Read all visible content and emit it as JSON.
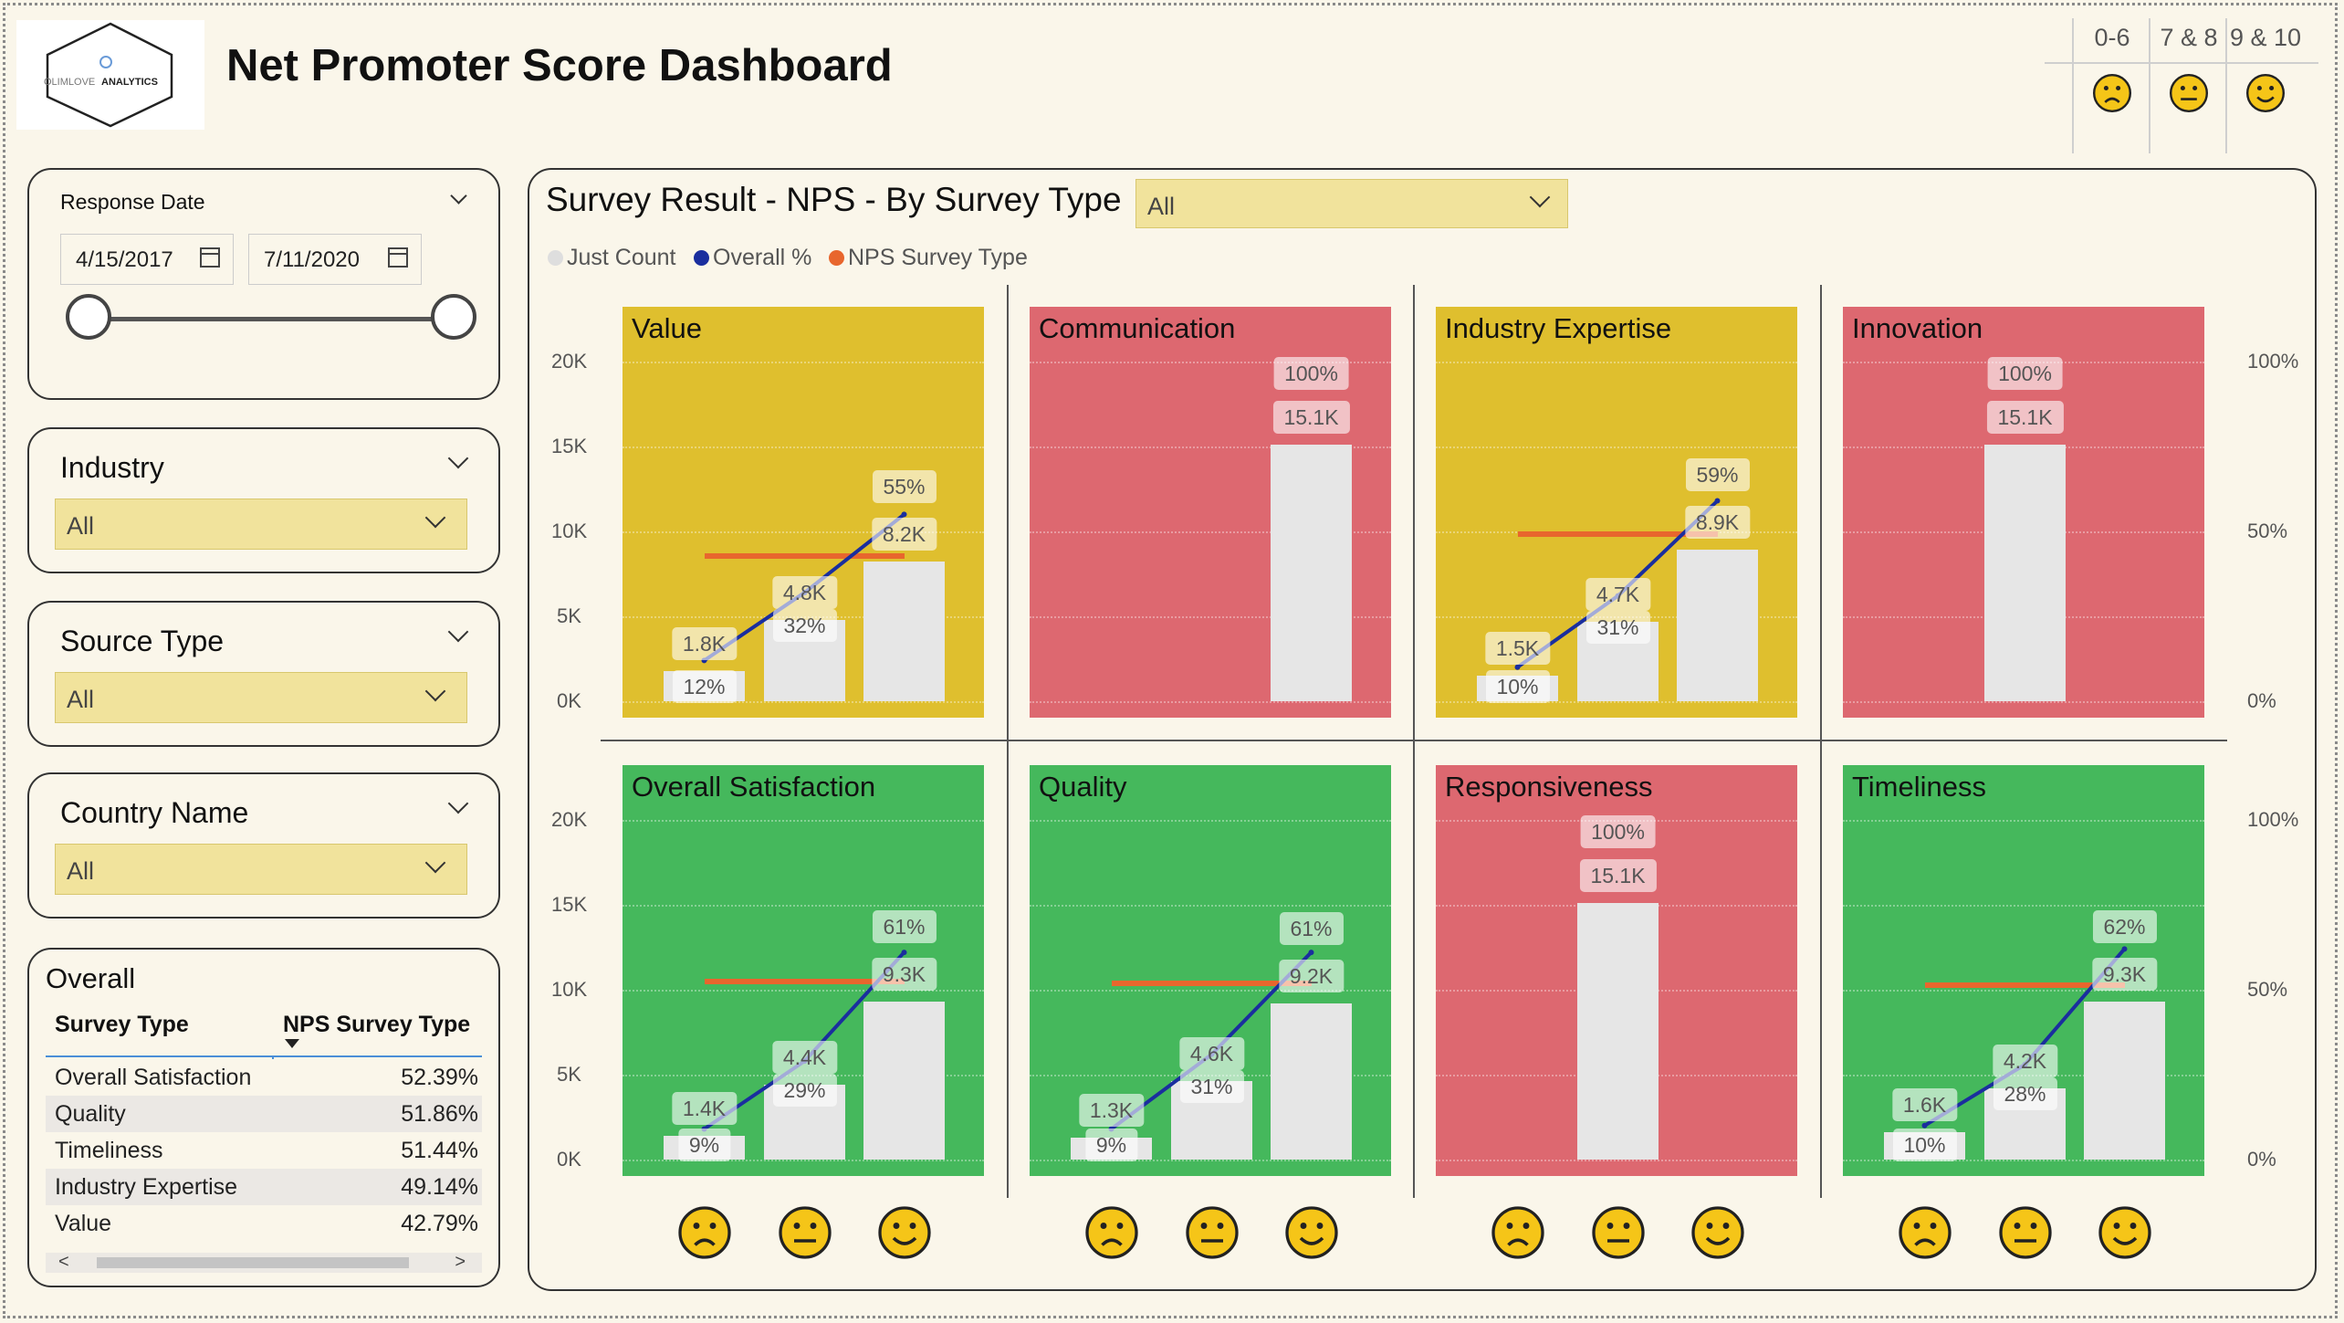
{
  "logo": {
    "text_light": "OLIMLOVE",
    "text_bold": "ANALYTICS"
  },
  "title": "Net Promoter Score Dashboard",
  "score_legend": [
    {
      "label": "0-6",
      "icon": "sad-face-icon"
    },
    {
      "label": "7 & 8",
      "icon": "neutral-face-icon"
    },
    {
      "label": "9 & 10",
      "icon": "happy-face-icon"
    }
  ],
  "response_date": {
    "title": "Response Date",
    "start": "4/15/2017",
    "end": "7/11/2020"
  },
  "slicers": [
    {
      "title": "Industry",
      "value": "All"
    },
    {
      "title": "Source Type",
      "value": "All"
    },
    {
      "title": "Country Name",
      "value": "All"
    }
  ],
  "overall": {
    "title": "Overall",
    "columns": [
      "Survey Type",
      "NPS Survey Type"
    ],
    "rows": [
      {
        "name": "Overall Satisfaction",
        "value": "52.39%"
      },
      {
        "name": "Quality",
        "value": "51.86%"
      },
      {
        "name": "Timeliness",
        "value": "51.44%"
      },
      {
        "name": "Industry Expertise",
        "value": "49.14%"
      },
      {
        "name": "Value",
        "value": "42.79%"
      }
    ],
    "scroll_left": "<",
    "scroll_right": ">"
  },
  "main": {
    "title": "Survey Result - NPS - By Survey Type",
    "filter_value": "All",
    "legend": [
      "Just Count",
      "Overall %",
      "NPS Survey Type"
    ],
    "left_axis": [
      "20K",
      "15K",
      "10K",
      "5K",
      "0K"
    ],
    "right_axis": [
      "100%",
      "50%",
      "0%"
    ]
  },
  "colors": {
    "yellow": "#dfbf2e",
    "red": "#dd6870",
    "green": "#45b85c",
    "bar": "#e6e6e6",
    "overall_line": "#1a2e9e",
    "nps_line": "#e8662d",
    "dropdown": "#f1e39c"
  },
  "chart_data": {
    "type": "bar",
    "categories": [
      "0-6",
      "7 & 8",
      "9 & 10"
    ],
    "ylim": [
      0,
      20000
    ],
    "y2lim": [
      0,
      1
    ],
    "panels": [
      {
        "name": "Value",
        "color": "yellow",
        "counts": [
          1800,
          4800,
          8200
        ],
        "count_labels": [
          "1.8K",
          "4.8K",
          "8.2K"
        ],
        "pct": [
          0.12,
          0.32,
          0.55
        ],
        "pct_labels": [
          "12%",
          "32%",
          "55%"
        ],
        "nps": 0.4279
      },
      {
        "name": "Communication",
        "color": "red",
        "counts": [
          null,
          null,
          15100
        ],
        "count_labels": [
          "",
          "",
          "15.1K"
        ],
        "pct": [
          null,
          null,
          1.0
        ],
        "pct_labels": [
          "",
          "",
          "100%"
        ],
        "nps": null
      },
      {
        "name": "Industry Expertise",
        "color": "yellow",
        "counts": [
          1500,
          4700,
          8900
        ],
        "count_labels": [
          "1.5K",
          "4.7K",
          "8.9K"
        ],
        "pct": [
          0.1,
          0.31,
          0.59
        ],
        "pct_labels": [
          "10%",
          "31%",
          "59%"
        ],
        "nps": 0.4914
      },
      {
        "name": "Innovation",
        "color": "red",
        "counts": [
          null,
          15100,
          null
        ],
        "count_labels": [
          "",
          "15.1K",
          ""
        ],
        "pct": [
          null,
          1.0,
          null
        ],
        "pct_labels": [
          "",
          "100%",
          ""
        ],
        "nps": null
      },
      {
        "name": "Overall Satisfaction",
        "color": "green",
        "counts": [
          1400,
          4400,
          9300
        ],
        "count_labels": [
          "1.4K",
          "4.4K",
          "9.3K"
        ],
        "pct": [
          0.09,
          0.29,
          0.61
        ],
        "pct_labels": [
          "9%",
          "29%",
          "61%"
        ],
        "nps": 0.5239
      },
      {
        "name": "Quality",
        "color": "green",
        "counts": [
          1300,
          4600,
          9200
        ],
        "count_labels": [
          "1.3K",
          "4.6K",
          "9.2K"
        ],
        "pct": [
          0.09,
          0.31,
          0.61
        ],
        "pct_labels": [
          "9%",
          "31%",
          "61%"
        ],
        "nps": 0.5186
      },
      {
        "name": "Responsiveness",
        "color": "red",
        "counts": [
          null,
          15100,
          null
        ],
        "count_labels": [
          "",
          "15.1K",
          ""
        ],
        "pct": [
          null,
          1.0,
          null
        ],
        "pct_labels": [
          "",
          "100%",
          ""
        ],
        "nps": null
      },
      {
        "name": "Timeliness",
        "color": "green",
        "counts": [
          1600,
          4200,
          9300
        ],
        "count_labels": [
          "1.6K",
          "4.2K",
          "9.3K"
        ],
        "pct": [
          0.1,
          0.28,
          0.62
        ],
        "pct_labels": [
          "10%",
          "28%",
          "62%"
        ],
        "nps": 0.5144
      }
    ]
  }
}
